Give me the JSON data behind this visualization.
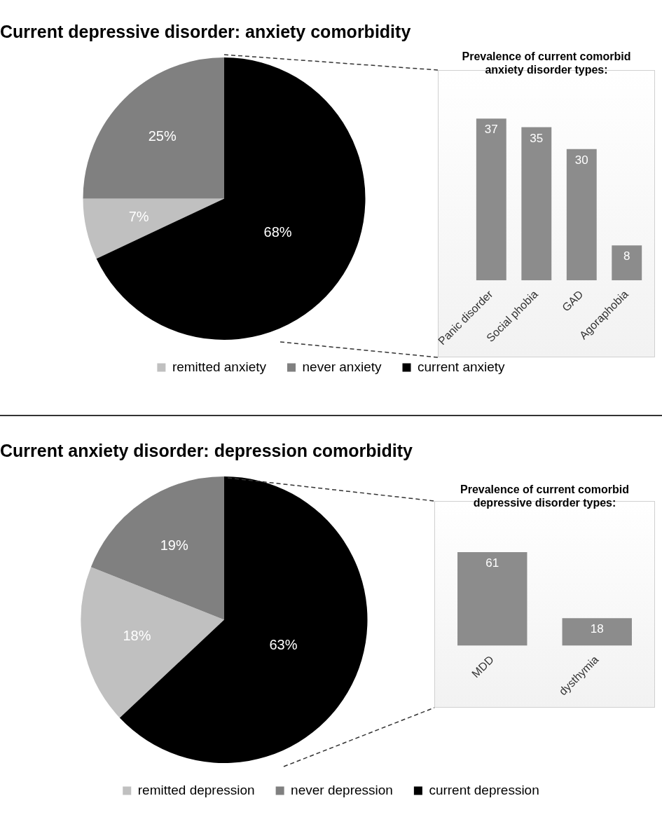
{
  "chart_data": [
    {
      "type": "pie",
      "title": "Current depressive disorder: anxiety comorbidity",
      "categories": [
        "remitted anxiety",
        "never anxiety",
        "current anxiety"
      ],
      "values": [
        7,
        25,
        68
      ],
      "colors": [
        "#c0c0c0",
        "#808080",
        "#000000"
      ],
      "value_labels": [
        "7%",
        "25%",
        "68%"
      ],
      "legend": "bottom"
    },
    {
      "type": "bar",
      "title": "Prevalence of current comorbid anxiety disorder types:",
      "categories": [
        "Panic disorder",
        "Social phobia",
        "GAD",
        "Agoraphobia"
      ],
      "values": [
        37,
        35,
        30,
        8
      ],
      "color": "#8c8c8c",
      "data_labels": true
    },
    {
      "type": "pie",
      "title": "Current anxiety disorder: depression comorbidity",
      "categories": [
        "remitted depression",
        "never depression",
        "current depression"
      ],
      "values": [
        18,
        19,
        63
      ],
      "colors": [
        "#c0c0c0",
        "#808080",
        "#000000"
      ],
      "value_labels": [
        "18%",
        "19%",
        "63%"
      ],
      "legend": "bottom"
    },
    {
      "type": "bar",
      "title": "Prevalence of current comorbid depressive disorder types:",
      "categories": [
        "MDD",
        "dysthymia"
      ],
      "values": [
        61,
        18
      ],
      "color": "#8c8c8c",
      "data_labels": true
    }
  ]
}
